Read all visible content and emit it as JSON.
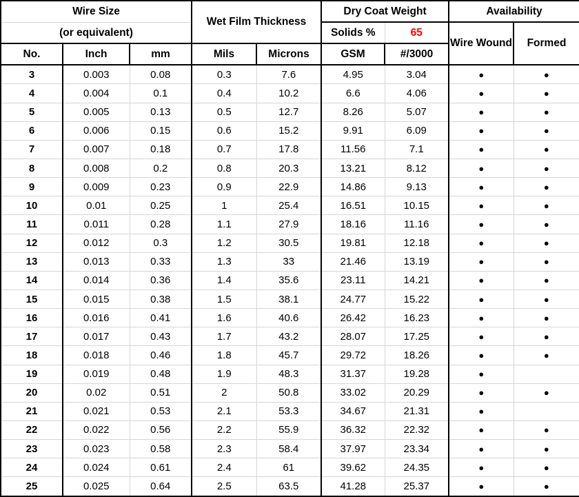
{
  "table": {
    "header": {
      "wire_size_title": "Wire Size",
      "wire_size_subtitle": "(or equivalent)",
      "wet_film_title": "Wet Film Thickness",
      "dry_coat_title": "Dry Coat Weight",
      "solids_label": "Solids %",
      "solids_value": "65",
      "availability_title": "Availability",
      "col_no": "No.",
      "col_inch": "Inch",
      "col_mm": "mm",
      "col_mils": "Mils",
      "col_microns": "Microns",
      "col_gsm": "GSM",
      "col_per3000": "#/3000",
      "col_wire_wound": "Wire Wound",
      "col_formed": "Formed"
    },
    "colors": {
      "solids_value_color": "#FF0000",
      "border_color": "#000000",
      "gridline_color": "#D6D6D6"
    },
    "dot_glyph": "●",
    "rows": [
      {
        "no": "3",
        "inch": "0.003",
        "mm": "0.08",
        "mils": "0.3",
        "microns": "7.6",
        "gsm": "4.95",
        "per3000": "3.04",
        "wire_wound": true,
        "formed": true
      },
      {
        "no": "4",
        "inch": "0.004",
        "mm": "0.1",
        "mils": "0.4",
        "microns": "10.2",
        "gsm": "6.6",
        "per3000": "4.06",
        "wire_wound": true,
        "formed": true
      },
      {
        "no": "5",
        "inch": "0.005",
        "mm": "0.13",
        "mils": "0.5",
        "microns": "12.7",
        "gsm": "8.26",
        "per3000": "5.07",
        "wire_wound": true,
        "formed": true
      },
      {
        "no": "6",
        "inch": "0.006",
        "mm": "0.15",
        "mils": "0.6",
        "microns": "15.2",
        "gsm": "9.91",
        "per3000": "6.09",
        "wire_wound": true,
        "formed": true
      },
      {
        "no": "7",
        "inch": "0.007",
        "mm": "0.18",
        "mils": "0.7",
        "microns": "17.8",
        "gsm": "11.56",
        "per3000": "7.1",
        "wire_wound": true,
        "formed": true
      },
      {
        "no": "8",
        "inch": "0.008",
        "mm": "0.2",
        "mils": "0.8",
        "microns": "20.3",
        "gsm": "13.21",
        "per3000": "8.12",
        "wire_wound": true,
        "formed": true
      },
      {
        "no": "9",
        "inch": "0.009",
        "mm": "0.23",
        "mils": "0.9",
        "microns": "22.9",
        "gsm": "14.86",
        "per3000": "9.13",
        "wire_wound": true,
        "formed": true
      },
      {
        "no": "10",
        "inch": "0.01",
        "mm": "0.25",
        "mils": "1",
        "microns": "25.4",
        "gsm": "16.51",
        "per3000": "10.15",
        "wire_wound": true,
        "formed": true
      },
      {
        "no": "11",
        "inch": "0.011",
        "mm": "0.28",
        "mils": "1.1",
        "microns": "27.9",
        "gsm": "18.16",
        "per3000": "11.16",
        "wire_wound": true,
        "formed": true
      },
      {
        "no": "12",
        "inch": "0.012",
        "mm": "0.3",
        "mils": "1.2",
        "microns": "30.5",
        "gsm": "19.81",
        "per3000": "12.18",
        "wire_wound": true,
        "formed": true
      },
      {
        "no": "13",
        "inch": "0.013",
        "mm": "0.33",
        "mils": "1.3",
        "microns": "33",
        "gsm": "21.46",
        "per3000": "13.19",
        "wire_wound": true,
        "formed": true
      },
      {
        "no": "14",
        "inch": "0.014",
        "mm": "0.36",
        "mils": "1.4",
        "microns": "35.6",
        "gsm": "23.11",
        "per3000": "14.21",
        "wire_wound": true,
        "formed": true
      },
      {
        "no": "15",
        "inch": "0.015",
        "mm": "0.38",
        "mils": "1.5",
        "microns": "38.1",
        "gsm": "24.77",
        "per3000": "15.22",
        "wire_wound": true,
        "formed": true
      },
      {
        "no": "16",
        "inch": "0.016",
        "mm": "0.41",
        "mils": "1.6",
        "microns": "40.6",
        "gsm": "26.42",
        "per3000": "16.23",
        "wire_wound": true,
        "formed": true
      },
      {
        "no": "17",
        "inch": "0.017",
        "mm": "0.43",
        "mils": "1.7",
        "microns": "43.2",
        "gsm": "28.07",
        "per3000": "17.25",
        "wire_wound": true,
        "formed": true
      },
      {
        "no": "18",
        "inch": "0.018",
        "mm": "0.46",
        "mils": "1.8",
        "microns": "45.7",
        "gsm": "29.72",
        "per3000": "18.26",
        "wire_wound": true,
        "formed": true
      },
      {
        "no": "19",
        "inch": "0.019",
        "mm": "0.48",
        "mils": "1.9",
        "microns": "48.3",
        "gsm": "31.37",
        "per3000": "19.28",
        "wire_wound": true,
        "formed": false
      },
      {
        "no": "20",
        "inch": "0.02",
        "mm": "0.51",
        "mils": "2",
        "microns": "50.8",
        "gsm": "33.02",
        "per3000": "20.29",
        "wire_wound": true,
        "formed": true
      },
      {
        "no": "21",
        "inch": "0.021",
        "mm": "0.53",
        "mils": "2.1",
        "microns": "53.3",
        "gsm": "34.67",
        "per3000": "21.31",
        "wire_wound": true,
        "formed": false
      },
      {
        "no": "22",
        "inch": "0.022",
        "mm": "0.56",
        "mils": "2.2",
        "microns": "55.9",
        "gsm": "36.32",
        "per3000": "22.32",
        "wire_wound": true,
        "formed": true
      },
      {
        "no": "23",
        "inch": "0.023",
        "mm": "0.58",
        "mils": "2.3",
        "microns": "58.4",
        "gsm": "37.97",
        "per3000": "23.34",
        "wire_wound": true,
        "formed": true
      },
      {
        "no": "24",
        "inch": "0.024",
        "mm": "0.61",
        "mils": "2.4",
        "microns": "61",
        "gsm": "39.62",
        "per3000": "24.35",
        "wire_wound": true,
        "formed": true
      },
      {
        "no": "25",
        "inch": "0.025",
        "mm": "0.64",
        "mils": "2.5",
        "microns": "63.5",
        "gsm": "41.28",
        "per3000": "25.37",
        "wire_wound": true,
        "formed": true
      }
    ]
  }
}
